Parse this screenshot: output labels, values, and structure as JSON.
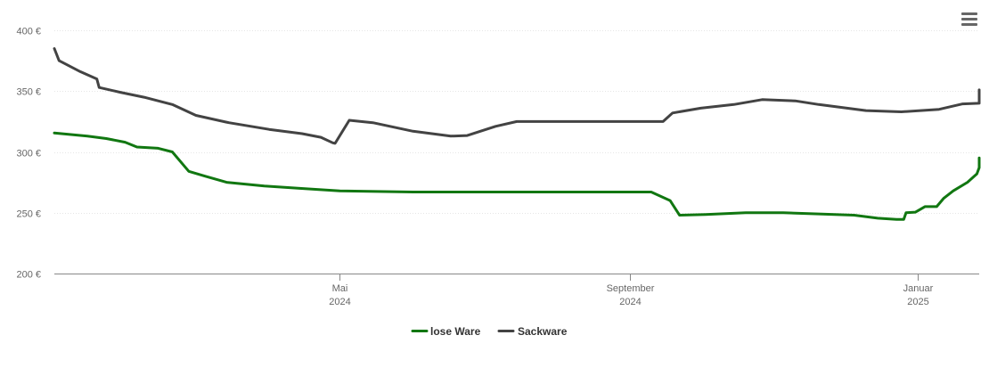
{
  "chart_data": {
    "type": "line",
    "y_ticks": [
      {
        "value": 200,
        "label": "200 €"
      },
      {
        "value": 250,
        "label": "250 €"
      },
      {
        "value": 300,
        "label": "300 €"
      },
      {
        "value": 350,
        "label": "350 €"
      },
      {
        "value": 400,
        "label": "400 €"
      }
    ],
    "ylim": [
      200,
      400
    ],
    "xlim": [
      "2024-01-01",
      "2025-01-27"
    ],
    "x_ticks": [
      {
        "date": "2024-05-01",
        "line1": "Mai",
        "line2": "2024"
      },
      {
        "date": "2024-09-01",
        "line1": "September",
        "line2": "2024"
      },
      {
        "date": "2025-01-01",
        "line1": "Januar",
        "line2": "2025"
      }
    ],
    "grid": true,
    "legend_position": "bottom-center",
    "series": [
      {
        "name": "lose Ware",
        "color": "#117711",
        "points": [
          [
            "2024-01-01",
            315.5
          ],
          [
            "2024-01-15",
            313
          ],
          [
            "2024-01-23",
            311
          ],
          [
            "2024-01-31",
            308
          ],
          [
            "2024-02-05",
            304
          ],
          [
            "2024-02-14",
            303
          ],
          [
            "2024-02-20",
            300
          ],
          [
            "2024-02-27",
            284
          ],
          [
            "2024-03-05",
            280
          ],
          [
            "2024-03-14",
            275
          ],
          [
            "2024-03-30",
            272
          ],
          [
            "2024-04-14",
            270
          ],
          [
            "2024-05-01",
            268
          ],
          [
            "2024-06-01",
            267
          ],
          [
            "2024-07-01",
            267
          ],
          [
            "2024-08-01",
            267
          ],
          [
            "2024-09-01",
            267
          ],
          [
            "2024-09-10",
            267
          ],
          [
            "2024-09-18",
            260
          ],
          [
            "2024-09-22",
            248
          ],
          [
            "2024-10-03",
            248.5
          ],
          [
            "2024-10-20",
            250
          ],
          [
            "2024-11-05",
            250
          ],
          [
            "2024-11-20",
            249
          ],
          [
            "2024-12-05",
            248
          ],
          [
            "2024-12-15",
            245.5
          ],
          [
            "2024-12-23",
            244.5
          ],
          [
            "2024-12-26",
            244.5
          ],
          [
            "2024-12-27",
            250
          ],
          [
            "2024-12-31",
            250.5
          ],
          [
            "2025-01-04",
            255
          ],
          [
            "2025-01-09",
            255
          ],
          [
            "2025-01-12",
            262
          ],
          [
            "2025-01-16",
            268
          ],
          [
            "2025-01-22",
            275
          ],
          [
            "2025-01-26",
            282
          ],
          [
            "2025-01-27",
            287
          ],
          [
            "2025-01-27",
            295
          ]
        ]
      },
      {
        "name": "Sackware",
        "color": "#434343",
        "points": [
          [
            "2024-01-01",
            385
          ],
          [
            "2024-01-03",
            375
          ],
          [
            "2024-01-07",
            371
          ],
          [
            "2024-01-12",
            366
          ],
          [
            "2024-01-19",
            360
          ],
          [
            "2024-01-20",
            353
          ],
          [
            "2024-01-29",
            349
          ],
          [
            "2024-02-08",
            345
          ],
          [
            "2024-02-20",
            339
          ],
          [
            "2024-03-01",
            330
          ],
          [
            "2024-03-15",
            324
          ],
          [
            "2024-04-01",
            318.5
          ],
          [
            "2024-04-15",
            315
          ],
          [
            "2024-04-23",
            312
          ],
          [
            "2024-04-28",
            307.5
          ],
          [
            "2024-04-29",
            307
          ],
          [
            "2024-05-05",
            326
          ],
          [
            "2024-05-15",
            324
          ],
          [
            "2024-06-01",
            317
          ],
          [
            "2024-06-17",
            313
          ],
          [
            "2024-06-24",
            313.5
          ],
          [
            "2024-07-06",
            321
          ],
          [
            "2024-07-15",
            325
          ],
          [
            "2024-08-15",
            325
          ],
          [
            "2024-09-01",
            325
          ],
          [
            "2024-09-15",
            325
          ],
          [
            "2024-09-19",
            332
          ],
          [
            "2024-10-01",
            336
          ],
          [
            "2024-10-15",
            339
          ],
          [
            "2024-10-27",
            343
          ],
          [
            "2024-11-10",
            342
          ],
          [
            "2024-11-20",
            339
          ],
          [
            "2024-12-10",
            334
          ],
          [
            "2024-12-25",
            333
          ],
          [
            "2025-01-10",
            335
          ],
          [
            "2025-01-20",
            339.5
          ],
          [
            "2025-01-27",
            340
          ],
          [
            "2025-01-27",
            351
          ]
        ]
      }
    ]
  }
}
